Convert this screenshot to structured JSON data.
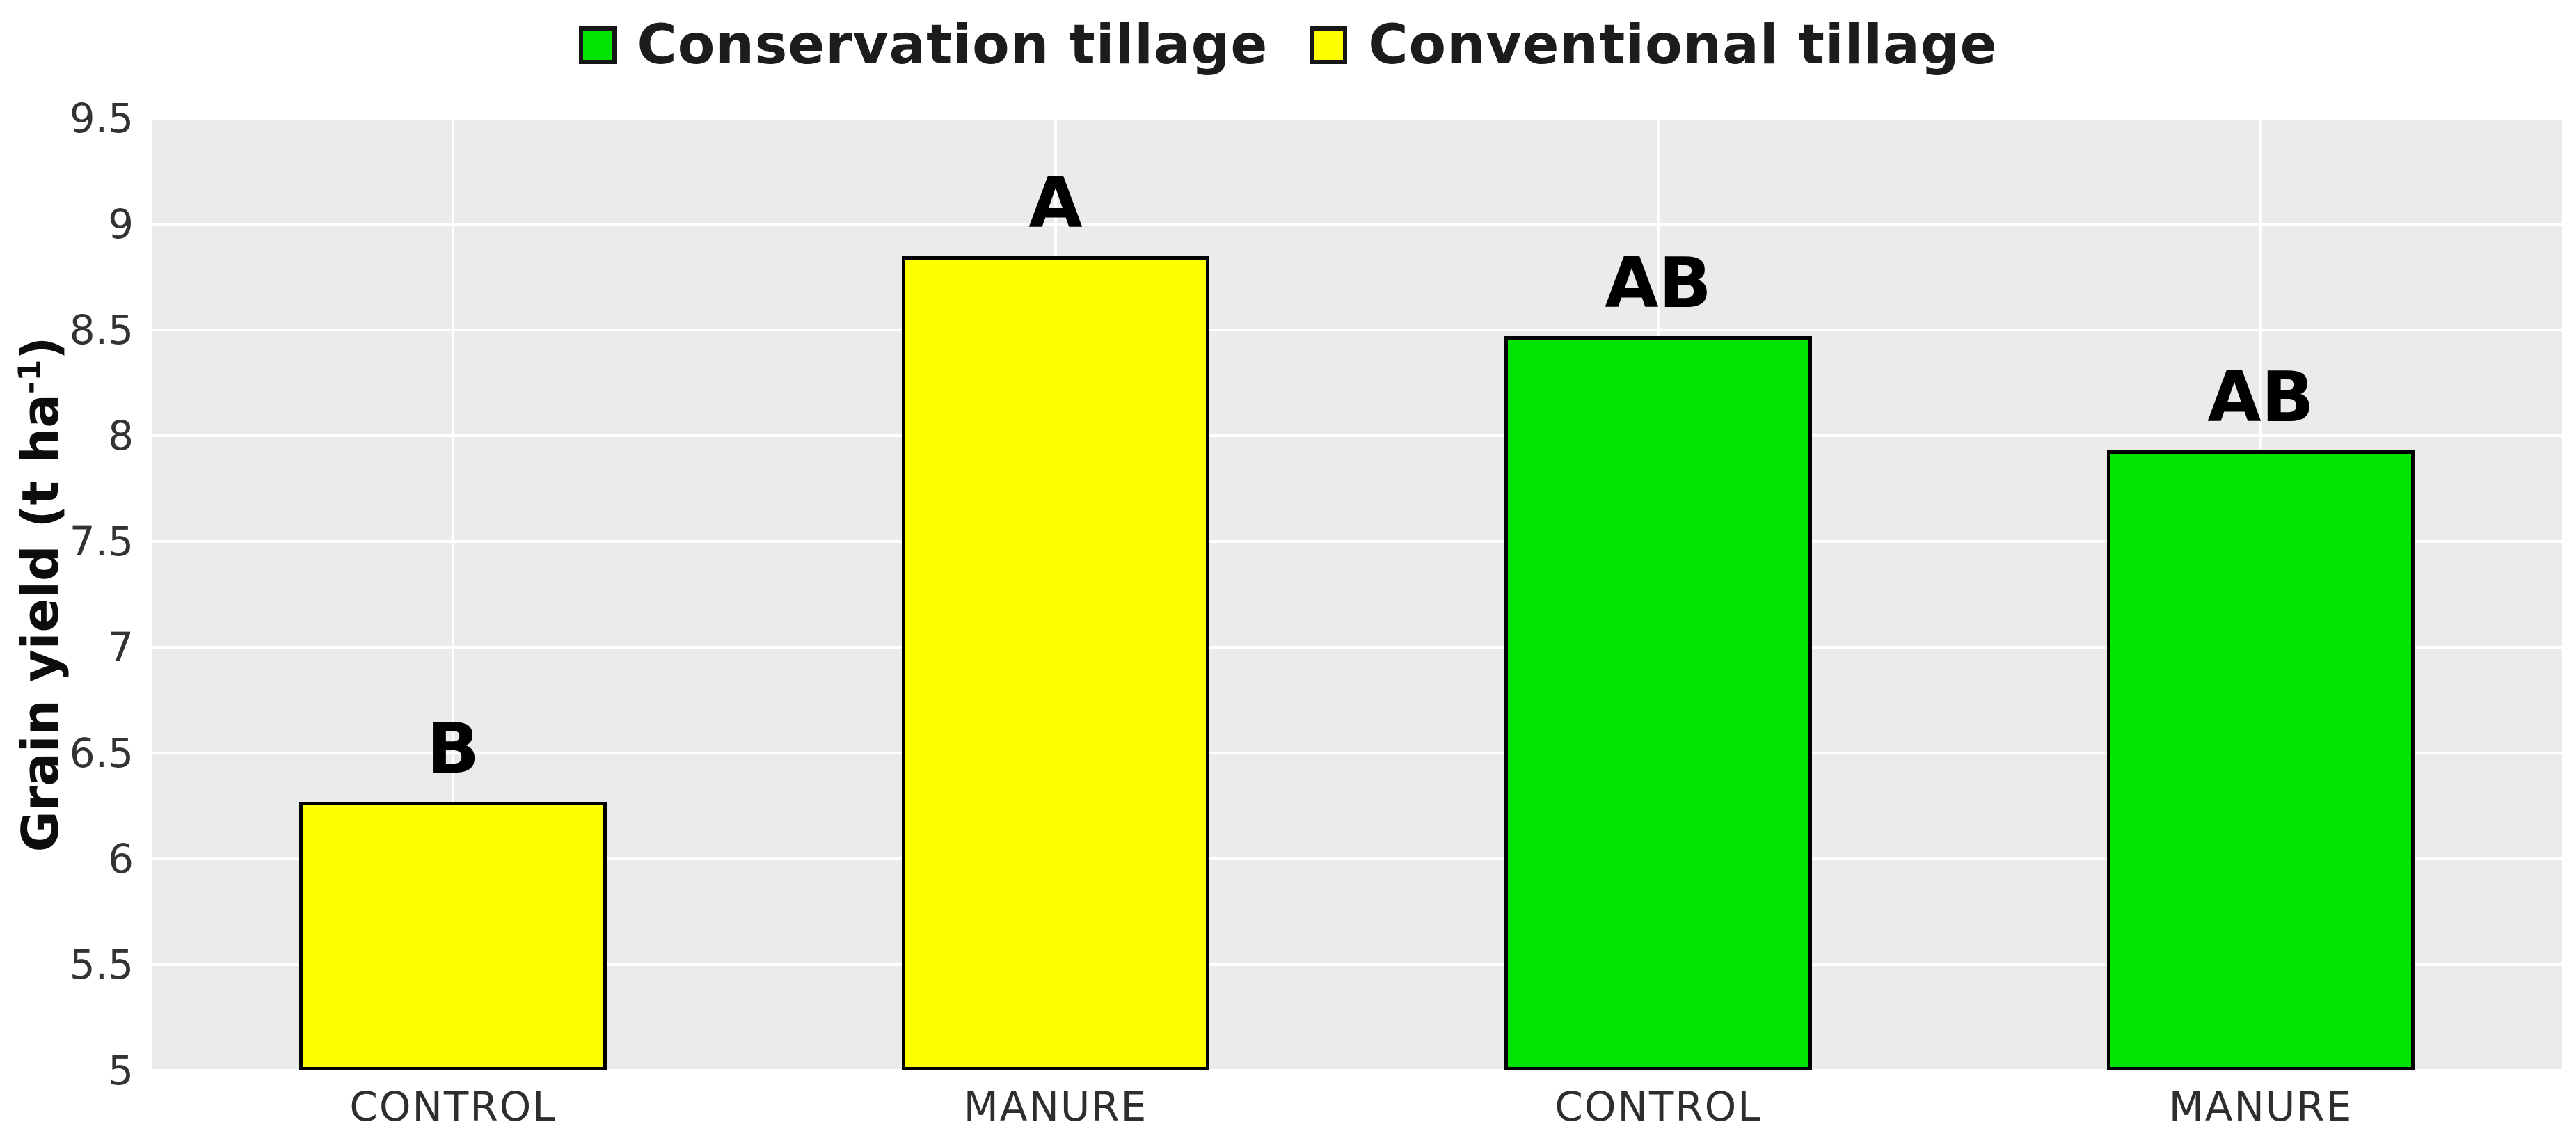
{
  "figure": {
    "background": "#ffffff",
    "plot_background": "#ebebeb",
    "gridline_color": "#ffffff",
    "bar_border_color": "#000000"
  },
  "legend": {
    "position": "top",
    "items": [
      {
        "label": "Conservation tillage",
        "color": "#00e400"
      },
      {
        "label": "Conventional tillage",
        "color": "#ffff00"
      }
    ]
  },
  "y_axis": {
    "title_prefix": "Grain yield (t ha",
    "title_sup": "-1",
    "title_suffix": ")"
  },
  "chart_data": {
    "type": "bar",
    "title": "",
    "xlabel": "",
    "ylabel": "Grain yield (t ha^-1)",
    "ylim": [
      5,
      9.5
    ],
    "yticks": [
      9.5,
      9,
      8.5,
      8,
      7.5,
      7,
      6.5,
      6,
      5.5,
      5
    ],
    "grid": true,
    "legend_position": "top",
    "categories": [
      "CONTROL",
      "MANURE",
      "CONTROL",
      "MANURE"
    ],
    "series_note": "first two bars = Conventional tillage (yellow), last two bars = Conservation tillage (green)",
    "bars": [
      {
        "category": "CONTROL",
        "group": "Conventional tillage",
        "value": 6.27,
        "sig_letter": "B",
        "color": "#ffff00"
      },
      {
        "category": "MANURE",
        "group": "Conventional tillage",
        "value": 8.85,
        "sig_letter": "A",
        "color": "#ffff00"
      },
      {
        "category": "CONTROL",
        "group": "Conservation tillage",
        "value": 8.47,
        "sig_letter": "AB",
        "color": "#00e400"
      },
      {
        "category": "MANURE",
        "group": "Conservation tillage",
        "value": 7.93,
        "sig_letter": "AB",
        "color": "#00e400"
      }
    ]
  }
}
